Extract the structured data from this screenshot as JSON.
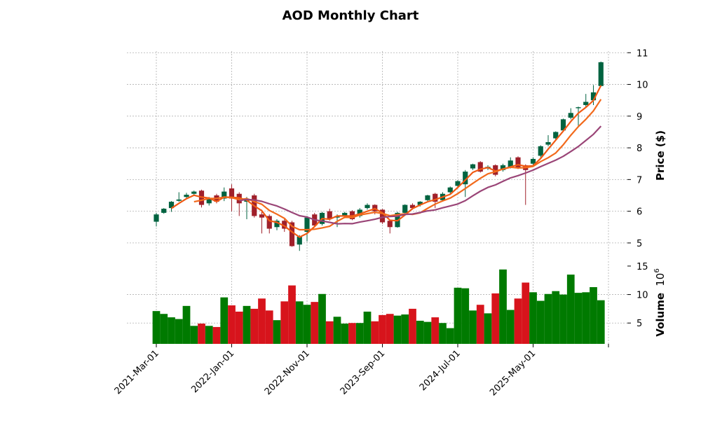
{
  "chart_data": {
    "type": "candlestick",
    "title": "AOD Monthly Chart",
    "ylabel": "Price ($)",
    "volume_label": "Volume",
    "volume_exponent": "10",
    "volume_exponent_power": "6",
    "ylim": [
      4.49,
      11.05
    ],
    "yticks": [
      5,
      6,
      7,
      8,
      9,
      10,
      11
    ],
    "volume_ylim": [
      1.34,
      15.85
    ],
    "volume_yticks": [
      5,
      10,
      15
    ],
    "xtick_labels": [
      {
        "index": 0,
        "label": "2021-Mar-01"
      },
      {
        "index": 10,
        "label": "2022-Jan-01"
      },
      {
        "index": 20,
        "label": "2022-Nov-01"
      },
      {
        "index": 30,
        "label": "2023-Sep-01"
      },
      {
        "index": 40,
        "label": "2024-Jul-01"
      },
      {
        "index": 50,
        "label": "2025-May-01"
      },
      {
        "index": 60,
        "label": ""
      }
    ],
    "moving_averages": [
      3,
      6,
      12
    ],
    "colors": {
      "up": "#006340",
      "down": "#a0202a",
      "vol_up": "#007a00",
      "vol_down": "#d7141c",
      "ma": [
        "#f05a14",
        "#f26a1c",
        "#9a4577"
      ]
    },
    "ohlc": [
      [
        5.67,
        5.95,
        5.52,
        5.9
      ],
      [
        5.95,
        6.1,
        5.92,
        6.08
      ],
      [
        6.1,
        6.32,
        5.98,
        6.3
      ],
      [
        6.33,
        6.6,
        6.3,
        6.37
      ],
      [
        6.45,
        6.58,
        6.4,
        6.52
      ],
      [
        6.55,
        6.65,
        6.52,
        6.62
      ],
      [
        6.65,
        6.68,
        6.12,
        6.2
      ],
      [
        6.25,
        6.45,
        6.18,
        6.42
      ],
      [
        6.5,
        6.55,
        6.25,
        6.3
      ],
      [
        6.4,
        6.75,
        6.32,
        6.62
      ],
      [
        6.72,
        6.85,
        6.0,
        6.4
      ],
      [
        6.55,
        6.6,
        5.85,
        6.25
      ],
      [
        6.3,
        6.45,
        5.75,
        6.4
      ],
      [
        6.5,
        6.55,
        5.8,
        5.85
      ],
      [
        5.9,
        6.05,
        5.3,
        5.8
      ],
      [
        5.85,
        5.9,
        5.3,
        5.45
      ],
      [
        5.5,
        5.75,
        5.4,
        5.7
      ],
      [
        5.7,
        5.75,
        5.35,
        5.45
      ],
      [
        5.65,
        5.7,
        4.88,
        4.9
      ],
      [
        4.95,
        5.25,
        4.75,
        5.2
      ],
      [
        5.35,
        5.85,
        5.05,
        5.8
      ],
      [
        5.9,
        5.95,
        5.5,
        5.55
      ],
      [
        5.6,
        5.98,
        5.55,
        5.95
      ],
      [
        6.0,
        6.08,
        5.7,
        5.75
      ],
      [
        5.8,
        5.9,
        5.5,
        5.85
      ],
      [
        5.85,
        5.98,
        5.78,
        5.95
      ],
      [
        6.0,
        6.03,
        5.72,
        5.75
      ],
      [
        5.85,
        6.1,
        5.8,
        6.05
      ],
      [
        6.1,
        6.25,
        6.05,
        6.2
      ],
      [
        6.2,
        6.22,
        5.9,
        6.0
      ],
      [
        6.05,
        6.07,
        5.6,
        5.65
      ],
      [
        5.7,
        5.72,
        5.3,
        5.5
      ],
      [
        5.5,
        5.98,
        5.48,
        5.95
      ],
      [
        5.95,
        6.22,
        5.9,
        6.2
      ],
      [
        6.2,
        6.25,
        6.05,
        6.1
      ],
      [
        6.2,
        6.32,
        6.15,
        6.3
      ],
      [
        6.35,
        6.52,
        6.3,
        6.5
      ],
      [
        6.55,
        6.58,
        6.1,
        6.3
      ],
      [
        6.35,
        6.6,
        6.3,
        6.55
      ],
      [
        6.6,
        6.78,
        6.55,
        6.75
      ],
      [
        6.8,
        6.98,
        6.75,
        6.95
      ],
      [
        6.85,
        7.3,
        6.45,
        7.25
      ],
      [
        7.35,
        7.5,
        7.3,
        7.48
      ],
      [
        7.55,
        7.58,
        7.22,
        7.25
      ],
      [
        7.35,
        7.45,
        7.3,
        7.4
      ],
      [
        7.45,
        7.48,
        7.1,
        7.15
      ],
      [
        7.3,
        7.5,
        7.25,
        7.45
      ],
      [
        7.4,
        7.7,
        7.35,
        7.6
      ],
      [
        7.7,
        7.73,
        7.33,
        7.35
      ],
      [
        7.45,
        7.48,
        6.2,
        7.3
      ],
      [
        7.5,
        7.7,
        7.45,
        7.65
      ],
      [
        7.75,
        8.08,
        7.7,
        8.05
      ],
      [
        8.1,
        8.4,
        8.05,
        8.18
      ],
      [
        8.3,
        8.52,
        8.25,
        8.5
      ],
      [
        8.55,
        8.92,
        8.5,
        8.9
      ],
      [
        8.95,
        9.25,
        8.9,
        9.1
      ],
      [
        9.25,
        9.3,
        8.7,
        9.28
      ],
      [
        9.35,
        9.7,
        9.3,
        9.45
      ],
      [
        9.5,
        9.98,
        9.35,
        9.75
      ],
      [
        9.95,
        10.72,
        9.92,
        10.7
      ]
    ],
    "volume": [
      7.1,
      6.6,
      6.0,
      5.7,
      8.0,
      4.5,
      4.9,
      4.5,
      4.3,
      9.5,
      8.1,
      7.0,
      8.0,
      7.5,
      9.3,
      7.2,
      5.5,
      8.8,
      11.6,
      8.8,
      8.2,
      8.7,
      10.1,
      5.3,
      6.1,
      4.9,
      5.0,
      5.0,
      7.0,
      5.3,
      6.4,
      6.6,
      6.3,
      6.5,
      7.5,
      5.4,
      5.2,
      6.0,
      5.0,
      4.1,
      11.2,
      11.1,
      7.2,
      8.2,
      6.7,
      10.2,
      14.4,
      7.3,
      9.3,
      12.1,
      10.4,
      8.9,
      10.1,
      10.6,
      10.0,
      13.5,
      10.3,
      10.4,
      11.3,
      9.0
    ]
  }
}
